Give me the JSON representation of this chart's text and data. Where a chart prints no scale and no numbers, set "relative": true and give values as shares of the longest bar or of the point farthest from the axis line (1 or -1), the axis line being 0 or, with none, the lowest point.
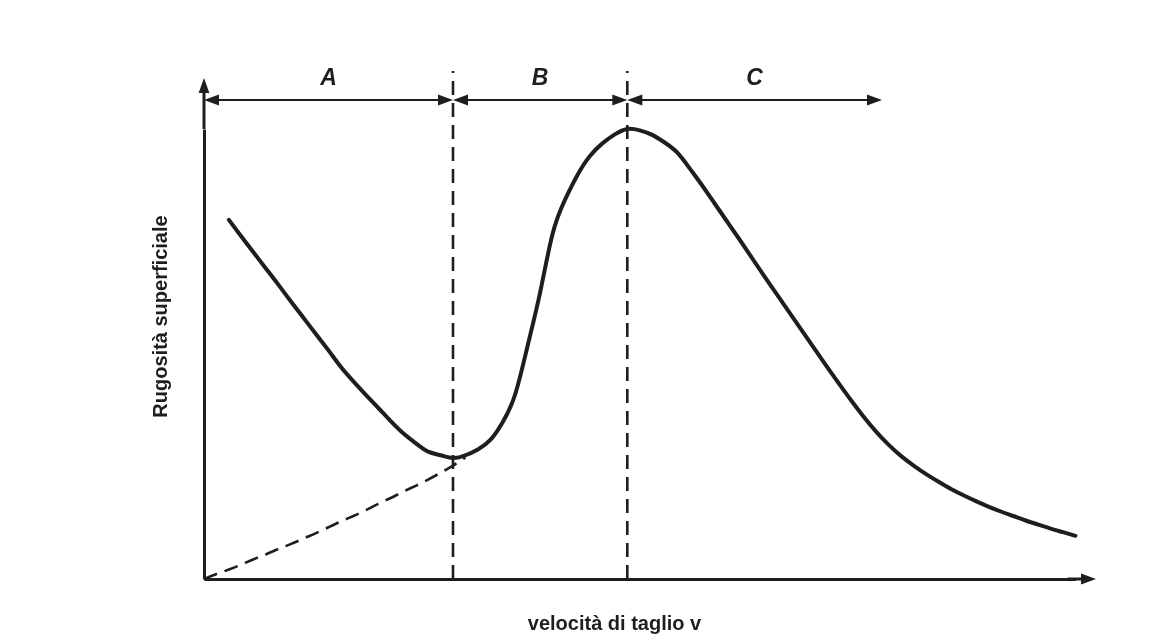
{
  "chart_data": {
    "type": "line",
    "relative": true,
    "xlabel": "velocità di taglio v",
    "ylabel": "Rugosità superficiale",
    "annotations": [
      "A",
      "B",
      "C"
    ],
    "categories": [
      null,
      null,
      null,
      null,
      null,
      null,
      null,
      null,
      null,
      null,
      null,
      null,
      null,
      null,
      null,
      null,
      null,
      null,
      null,
      null,
      null,
      null,
      null,
      null,
      null,
      null,
      null,
      null,
      null,
      null,
      null,
      null,
      null,
      null,
      null,
      null,
      null,
      null,
      null,
      null,
      null,
      null,
      null,
      null,
      null,
      null,
      null,
      null,
      null,
      null,
      null,
      null,
      null,
      null,
      null,
      null,
      null,
      null,
      null,
      null,
      null,
      null,
      null,
      null,
      null,
      null,
      null,
      null,
      null,
      null,
      null
    ],
    "series": [
      {
        "color": "#1e1e1e",
        "line_style": "solid",
        "values": [
          null,
          null,
          0.798,
          0.761,
          0.725,
          0.689,
          0.653,
          0.616,
          0.58,
          0.544,
          0.508,
          0.471,
          0.439,
          0.409,
          0.38,
          0.351,
          0.324,
          0.302,
          0.283,
          0.275,
          0.269,
          0.275,
          0.288,
          0.309,
          0.349,
          0.411,
          0.519,
          0.637,
          0.767,
          0.843,
          0.898,
          0.94,
          0.968,
          0.988,
          1.0,
          0.997,
          0.987,
          0.97,
          0.948,
          0.913,
          0.875,
          0.835,
          0.795,
          0.755,
          0.714,
          0.673,
          0.633,
          0.593,
          0.553,
          0.513,
          0.473,
          0.434,
          0.396,
          0.36,
          0.327,
          0.298,
          0.273,
          0.252,
          0.233,
          0.216,
          0.2,
          0.186,
          0.173,
          0.161,
          0.15,
          0.14,
          0.13,
          0.121,
          0.112,
          0.104,
          0.096
        ]
      },
      {
        "color": "#1e1e1e",
        "line_style": "dashed",
        "values": [
          0,
          0.011,
          0.021,
          0.032,
          0.044,
          0.055,
          0.067,
          0.078,
          0.09,
          0.102,
          0.115,
          0.128,
          0.14,
          0.153,
          0.167,
          0.18,
          0.194,
          0.207,
          0.221,
          0.236,
          0.252,
          0.27,
          null,
          null,
          null,
          null,
          null,
          null,
          null,
          null,
          null,
          null,
          null,
          null,
          null,
          null,
          null,
          null,
          null,
          null,
          null,
          null,
          null,
          null,
          null,
          null,
          null,
          null,
          null,
          null,
          null,
          null,
          null,
          null,
          null,
          null,
          null,
          null,
          null,
          null,
          null,
          null,
          null,
          null,
          null,
          null,
          null,
          null,
          null,
          null,
          null
        ]
      }
    ]
  }
}
